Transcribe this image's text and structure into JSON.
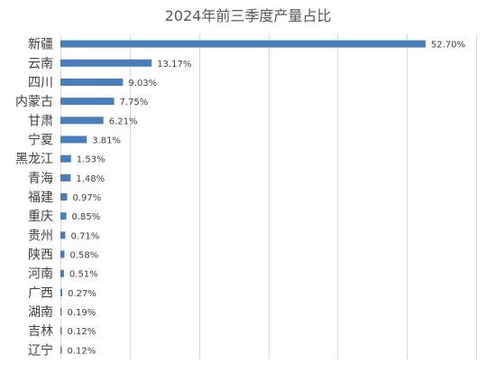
{
  "chart_data": {
    "type": "bar",
    "orientation": "horizontal",
    "title": "2024年前三季度产量占比",
    "categories": [
      "新疆",
      "云南",
      "四川",
      "内蒙古",
      "甘肃",
      "宁夏",
      "黑龙江",
      "青海",
      "福建",
      "重庆",
      "贵州",
      "陕西",
      "河南",
      "广西",
      "湖南",
      "吉林",
      "辽宁"
    ],
    "values": [
      52.7,
      13.17,
      9.03,
      7.75,
      6.21,
      3.81,
      1.53,
      1.48,
      0.97,
      0.85,
      0.71,
      0.58,
      0.51,
      0.27,
      0.19,
      0.12,
      0.12
    ],
    "value_labels": [
      "52.70%",
      "13.17%",
      "9.03%",
      "7.75%",
      "6.21%",
      "3.81%",
      "1.53%",
      "1.48%",
      "0.97%",
      "0.85%",
      "0.71%",
      "0.58%",
      "0.51%",
      "0.27%",
      "0.19%",
      "0.12%",
      "0.12%"
    ],
    "xlim": [
      0,
      60
    ],
    "x_gridlines": [
      0,
      10,
      20,
      30,
      40,
      50,
      60
    ],
    "x_tick_labels_visible": false,
    "grid": true,
    "legend": "none",
    "bar_color": "#4a7ebb",
    "gridline_color": "#d9d9d9"
  }
}
